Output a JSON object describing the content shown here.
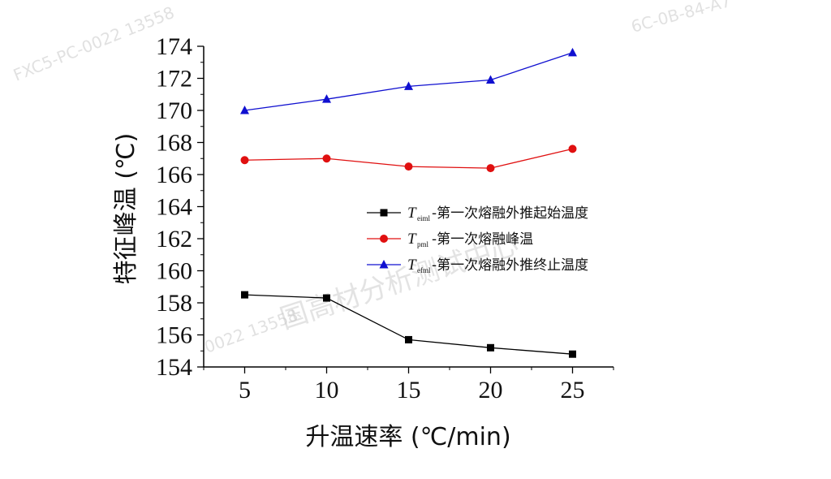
{
  "chart_data": {
    "type": "line",
    "xlabel": "升温速率 (℃/min)",
    "ylabel": "特征峰温 (℃)",
    "x": [
      5,
      10,
      15,
      20,
      25
    ],
    "xticks": [
      "5",
      "10",
      "15",
      "20",
      "25"
    ],
    "xlim": [
      2.5,
      27.5
    ],
    "ylim": [
      154,
      174
    ],
    "yticks": [
      "154",
      "156",
      "158",
      "160",
      "162",
      "164",
      "166",
      "168",
      "170",
      "172",
      "174"
    ],
    "grid": false,
    "legend_position": "center-right",
    "series": [
      {
        "symbol": "T",
        "subscript": "eiml",
        "name": "-第一次熔融外推起始温度",
        "marker": "square",
        "color": "#000000",
        "values": [
          158.5,
          158.3,
          155.7,
          155.2,
          154.8
        ]
      },
      {
        "symbol": "T",
        "subscript": "pml",
        "name": "-第一次熔融峰温",
        "marker": "circle",
        "color": "#e01010",
        "values": [
          166.9,
          167.0,
          166.5,
          166.4,
          167.6
        ]
      },
      {
        "symbol": "T",
        "subscript": "efml",
        "name": "-第一次熔融外推终止温度",
        "marker": "triangle",
        "color": "#1010d0",
        "values": [
          170.0,
          170.7,
          171.5,
          171.9,
          173.6
        ]
      }
    ]
  },
  "watermarks": [
    "FXC5-PC-0022   13558",
    "国高材分析测试中心",
    "6C-0B-84-A7",
    "0022   13558"
  ]
}
